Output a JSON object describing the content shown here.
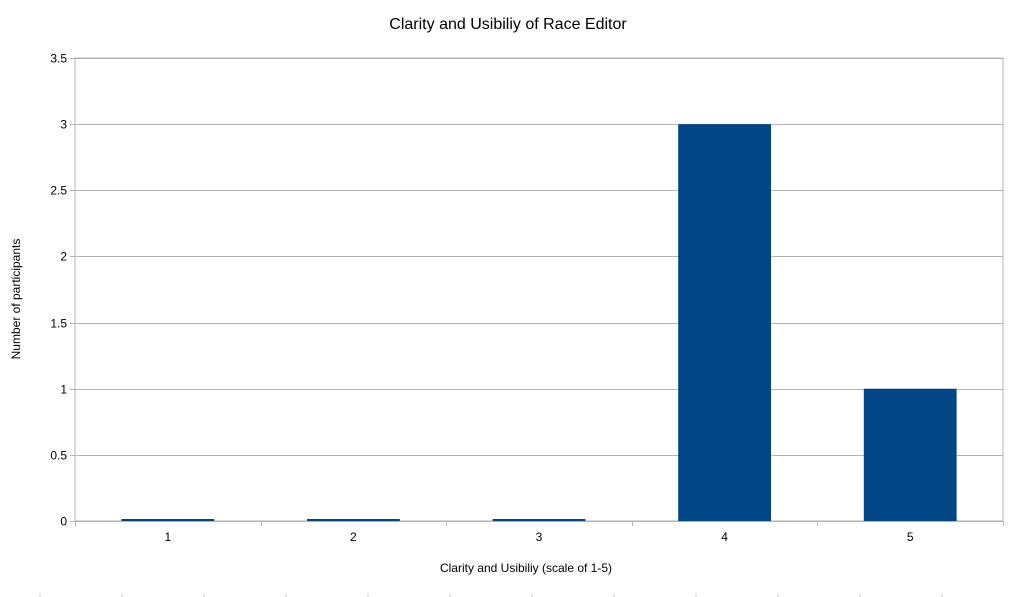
{
  "chart_data": {
    "type": "bar",
    "title": "Clarity and Usibiliy of Race Editor",
    "xlabel": "Clarity and Usibiliy (scale of 1-5)",
    "ylabel": "Number of participants",
    "categories": [
      "1",
      "2",
      "3",
      "4",
      "5"
    ],
    "values": [
      0,
      0,
      0,
      3,
      1
    ],
    "ylim": [
      0,
      3.5
    ],
    "yticks": [
      "0",
      "0.5",
      "1",
      "1.5",
      "2",
      "2.5",
      "3",
      "3.5"
    ],
    "grid": true,
    "legend": "none",
    "colors": {
      "bar": "#004586",
      "grid": "#b3b3b3",
      "axis": "#b3b3b3"
    }
  }
}
